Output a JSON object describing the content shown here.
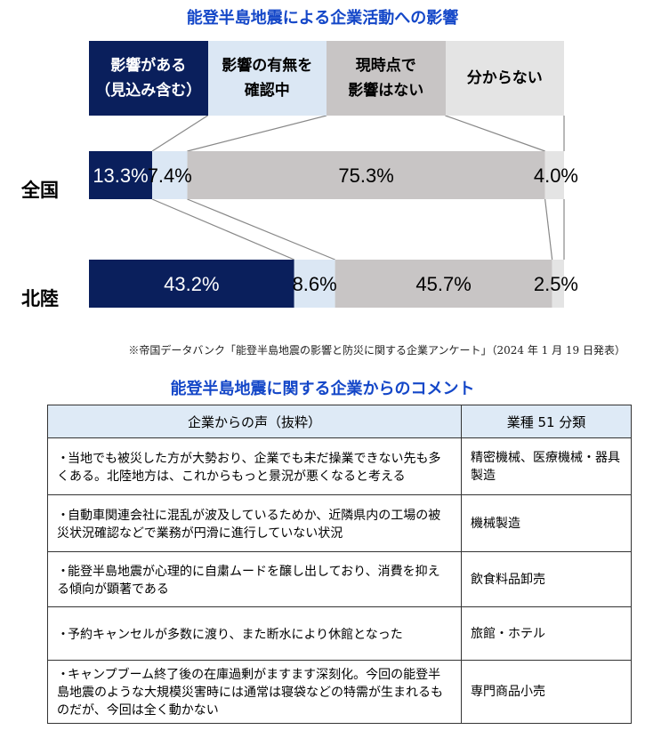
{
  "chart_data": {
    "type": "bar",
    "orientation": "horizontal-stacked-100",
    "title": "能登半島地震による企業活動への影響",
    "legend": {
      "placement": "top",
      "items": [
        {
          "label": "影響がある\n（見込み含む）",
          "color": "#0a1f5c",
          "text_color": "#ffffff"
        },
        {
          "label": "影響の有無を\n確認中",
          "color": "#dbe7f4",
          "text_color": "#000000"
        },
        {
          "label": "現時点で\n影響はない",
          "color": "#c8c5c5",
          "text_color": "#000000"
        },
        {
          "label": "分からない",
          "color": "#e4e4e4",
          "text_color": "#000000"
        }
      ]
    },
    "categories": [
      "全国",
      "北陸"
    ],
    "series": [
      {
        "name": "影響がある（見込み含む）",
        "values": [
          13.3,
          43.2
        ],
        "labels": [
          "13.3%",
          "43.2%"
        ]
      },
      {
        "name": "影響の有無を確認中",
        "values": [
          7.4,
          8.6
        ],
        "labels": [
          "7.4%",
          "8.6%"
        ]
      },
      {
        "name": "現時点で影響はない",
        "values": [
          75.3,
          45.7
        ],
        "labels": [
          "75.3%",
          "45.7%"
        ]
      },
      {
        "name": "分からない",
        "values": [
          4.0,
          2.5
        ],
        "labels": [
          "4.0%",
          "2.5%"
        ]
      }
    ],
    "xlim": [
      0,
      100
    ],
    "grid": false
  },
  "source": "※帝国データバンク「能登半島地震の影響と防災に関する企業アンケート」（2024 年 1 月 19 日発表）",
  "comments": {
    "title": "能登半島地震に関する企業からのコメント",
    "headers": [
      "企業からの声（抜粋）",
      "業種 51 分類"
    ],
    "rows": [
      {
        "bullet": "・",
        "text": "当地でも被災した方が大勢おり、企業でも未だ操業できない先も多くある。北陸地方は、これからもっと景況が悪くなると考える",
        "industry": "精密機械、医療機械・器具製造"
      },
      {
        "bullet": "・",
        "text": "自動車関連会社に混乱が波及しているためか、近隣県内の工場の被災状況確認などで業務が円滑に進行していない状況",
        "industry": "機械製造"
      },
      {
        "bullet": "・",
        "text": "能登半島地震が心理的に自粛ムードを醸し出しており、消費を抑える傾向が顕著である",
        "industry": "飲食料品卸売"
      },
      {
        "bullet": "・",
        "text": "予約キャンセルが多数に渡り、また断水により休館となった",
        "industry": "旅館・ホテル"
      },
      {
        "bullet": "・",
        "text": "キャンプブーム終了後の在庫過剰がますます深刻化。今回の能登半島地震のような大規模災害時には通常は寝袋などの特需が生まれるものだが、今回は全く動かない",
        "industry": "専門商品小売"
      }
    ]
  }
}
